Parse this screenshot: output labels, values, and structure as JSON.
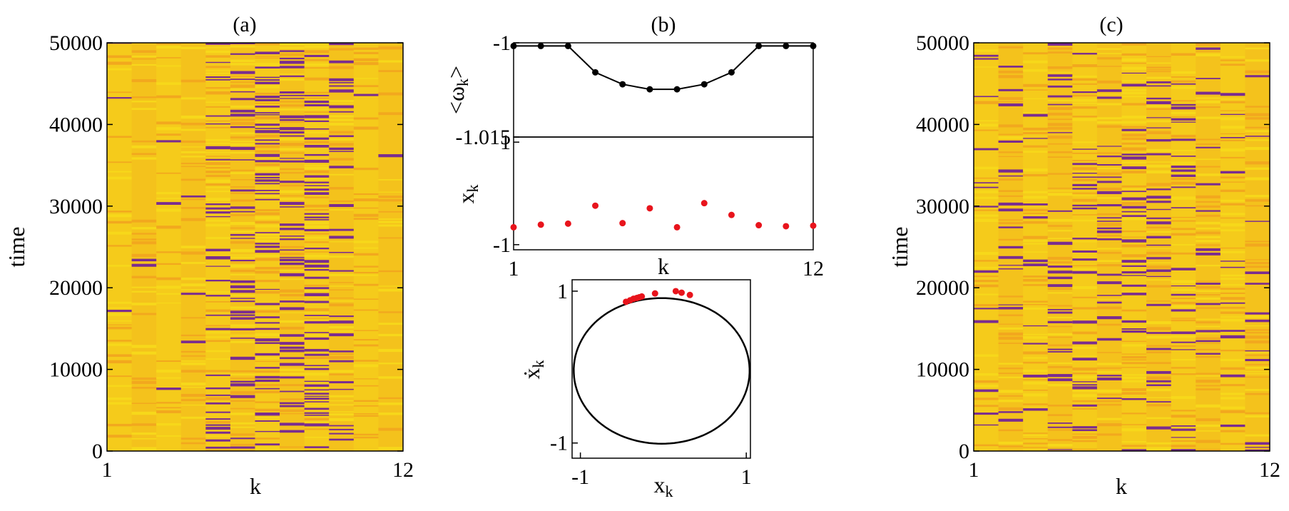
{
  "chart_data": [
    {
      "panel": "(a)",
      "type": "heatmap",
      "title": "(a)",
      "xlabel": "k",
      "ylabel": "time",
      "xlim": [
        1,
        12
      ],
      "ylim": [
        0,
        50000
      ],
      "xticks": [
        "1",
        "12"
      ],
      "yticks": [
        "0",
        "10000",
        "20000",
        "30000",
        "40000",
        "50000"
      ],
      "colormap": [
        "#f7d81a",
        "#f2a81e",
        "#7a2c8f"
      ],
      "columns": 12,
      "stripe_density": [
        0.04,
        0.04,
        0.05,
        0.04,
        0.45,
        0.6,
        0.65,
        0.6,
        0.55,
        0.45,
        0.05,
        0.04
      ]
    },
    {
      "panel": "(b) top",
      "type": "line",
      "title": "(b)",
      "xlabel": "",
      "ylabel": "<ω_k>",
      "xlim": [
        1,
        12
      ],
      "ylim": [
        -1.015,
        -1
      ],
      "yticks": [
        "-1",
        "-1.015"
      ],
      "color": "#000000",
      "x": [
        1,
        2,
        3,
        4,
        5,
        6,
        7,
        8,
        9,
        10,
        11,
        12
      ],
      "y": [
        -1.0005,
        -1.0005,
        -1.0005,
        -1.0047,
        -1.0066,
        -1.0074,
        -1.0074,
        -1.0066,
        -1.0047,
        -1.0005,
        -1.0005,
        -1.0005
      ]
    },
    {
      "panel": "(b) middle",
      "type": "scatter",
      "xlabel": "k",
      "ylabel": "x_k",
      "xlim": [
        1,
        12
      ],
      "ylim": [
        -1,
        1
      ],
      "xticks": [
        "1",
        "12"
      ],
      "yticks": [
        "1",
        "-1"
      ],
      "color": "#e8141c",
      "x": [
        1,
        2,
        3,
        4,
        5,
        6,
        7,
        8,
        9,
        10,
        11,
        12
      ],
      "y": [
        -0.66,
        -0.61,
        -0.59,
        -0.24,
        -0.58,
        -0.29,
        -0.66,
        -0.19,
        -0.42,
        -0.62,
        -0.64,
        -0.63
      ]
    },
    {
      "panel": "(b) bottom",
      "type": "scatter",
      "xlabel": "x_k",
      "ylabel": "ẋ_k",
      "xlim": [
        -1.1,
        1.05
      ],
      "ylim": [
        -1.2,
        1.15
      ],
      "xticks": [
        "-1",
        "1"
      ],
      "yticks": [
        "1",
        "-1"
      ],
      "color": "#e8141c",
      "limit_cycle_color": "#000000",
      "x": [
        -0.45,
        -0.4,
        -0.36,
        -0.32,
        -0.29,
        -0.26,
        -0.1,
        0.15,
        0.22,
        0.32
      ],
      "y": [
        0.86,
        0.88,
        0.9,
        0.91,
        0.92,
        0.93,
        0.97,
        1.0,
        0.98,
        0.95
      ]
    },
    {
      "panel": "(c)",
      "type": "heatmap",
      "title": "(c)",
      "xlabel": "k",
      "ylabel": "time",
      "xlim": [
        1,
        12
      ],
      "ylim": [
        0,
        50000
      ],
      "xticks": [
        "1",
        "12"
      ],
      "yticks": [
        "0",
        "10000",
        "20000",
        "30000",
        "40000",
        "50000"
      ],
      "colormap": [
        "#f7d81a",
        "#f2a81e",
        "#7a2c8f"
      ],
      "columns": 12,
      "stripe_density": [
        0.32,
        0.3,
        0.34,
        0.36,
        0.38,
        0.4,
        0.42,
        0.4,
        0.38,
        0.36,
        0.34,
        0.32
      ]
    }
  ]
}
